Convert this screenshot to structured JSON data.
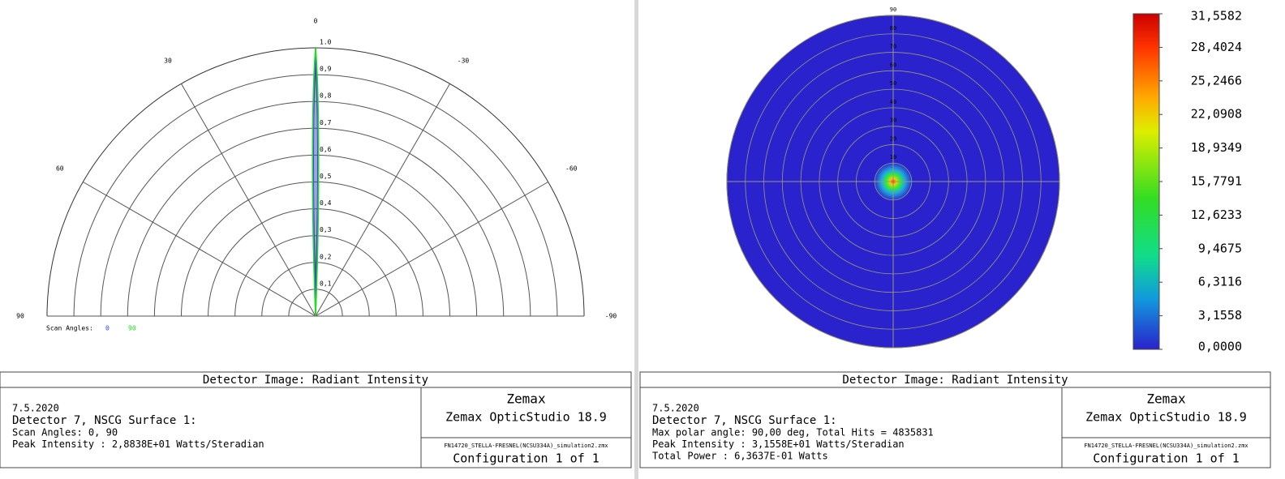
{
  "polar_plot": {
    "angle_labels": [
      0,
      30,
      -30,
      60,
      -60,
      90,
      -90
    ],
    "radial_ticks": [
      {
        "value": 0.1,
        "label": "0,1"
      },
      {
        "value": 0.2,
        "label": "0,2"
      },
      {
        "value": 0.3,
        "label": "0,3"
      },
      {
        "value": 0.4,
        "label": "0,4"
      },
      {
        "value": 0.5,
        "label": "0,5"
      },
      {
        "value": 0.6,
        "label": "0,6"
      },
      {
        "value": 0.7,
        "label": "0,7"
      },
      {
        "value": 0.8,
        "label": "0,8"
      },
      {
        "value": 0.9,
        "label": "0,9"
      },
      {
        "value": 1,
        "label": "1.0"
      }
    ],
    "legend_title": "Scan Angles:",
    "legend_entries": [
      {
        "label": "0",
        "color": "#3344ff"
      },
      {
        "label": "90",
        "color": "#22dd22"
      }
    ]
  },
  "polar_map": {
    "ring_labels": [
      10,
      20,
      30,
      40,
      50,
      60,
      70,
      80,
      90
    ],
    "colorbar_ticks": [
      {
        "value": 31.5582,
        "label": "31,5582"
      },
      {
        "value": 28.4024,
        "label": "28,4024"
      },
      {
        "value": 25.2466,
        "label": "25,2466"
      },
      {
        "value": 22.0908,
        "label": "22,0908"
      },
      {
        "value": 18.9349,
        "label": "18,9349"
      },
      {
        "value": 15.7791,
        "label": "15,7791"
      },
      {
        "value": 12.6233,
        "label": "12,6233"
      },
      {
        "value": 9.4675,
        "label": "9,4675"
      },
      {
        "value": 6.3116,
        "label": "6,3116"
      },
      {
        "value": 3.1558,
        "label": "3,1558"
      },
      {
        "value": 0,
        "label": "0,0000"
      }
    ]
  },
  "left_info": {
    "title": "Detector Image: Radiant Intensity",
    "date": "7.5.2020",
    "detector": "Detector 7, NSCG Surface 1:",
    "lines": [
      "Scan Angles: 0, 90",
      "Peak Intensity  : 2,8838E+01 Watts/Steradian"
    ],
    "company": "Zemax",
    "product": "Zemax OpticStudio 18.9",
    "file": "FN14720_STELLA-FRESNEL(NCSU334A)_simulation2.zmx",
    "config": "Configuration 1 of 1"
  },
  "right_info": {
    "title": "Detector Image: Radiant Intensity",
    "date": "7.5.2020",
    "detector": "Detector 7, NSCG Surface 1:",
    "lines": [
      "Max polar angle: 90,00 deg, Total Hits = 4835831",
      "Peak Intensity  : 3,1558E+01 Watts/Steradian",
      "Total Power     : 6,3637E-01 Watts"
    ],
    "company": "Zemax",
    "product": "Zemax OpticStudio 18.9",
    "file": "FN14720_STELLA-FRESNEL(NCSU334A)_simulation2.zmx",
    "config": "Configuration 1 of 1"
  }
}
